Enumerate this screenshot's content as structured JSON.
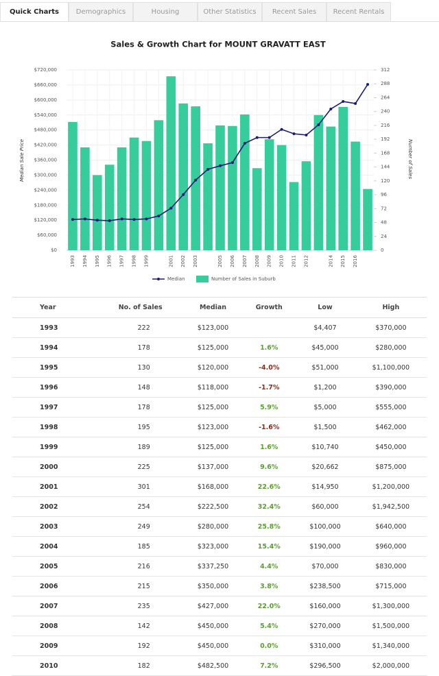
{
  "tabs": [
    "Quick Charts",
    "Demographics",
    "Housing",
    "Other Statistics",
    "Recent Sales",
    "Recent Rentals"
  ],
  "chart_data": {
    "type": "combo",
    "title": "Sales & Growth Chart for MOUNT GRAVATT EAST",
    "y_label": "Median Sale Price",
    "y2_label": "Number of Sales",
    "categories": [
      "1993",
      "1994",
      "1995",
      "1996",
      "1997",
      "1998",
      "1999",
      null,
      "2001",
      "2002",
      "2003",
      null,
      "2005",
      "2006",
      "2007",
      "2008",
      "2009",
      "2010",
      "2011",
      "2012",
      null,
      "2014",
      "2015",
      "2016",
      null
    ],
    "series": [
      {
        "name": "Median",
        "type": "line",
        "axis": "y",
        "color": "#1a1a7a",
        "values": [
          123000,
          125000,
          120000,
          118000,
          125000,
          123000,
          125000,
          137000,
          168000,
          222500,
          280000,
          323000,
          337250,
          350000,
          427000,
          450000,
          450000,
          482500,
          465000,
          460000,
          501000,
          564000,
          594000,
          586000,
          662000
        ]
      },
      {
        "name": "Number of Sales in Suburb",
        "type": "bar",
        "axis": "y2",
        "color": "#36cc9c",
        "values": [
          222,
          178,
          130,
          148,
          178,
          195,
          189,
          225,
          301,
          254,
          249,
          185,
          216,
          215,
          235,
          142,
          192,
          182,
          118,
          154,
          234,
          214,
          248,
          188,
          106
        ]
      }
    ],
    "ylim": [
      0,
      720000
    ],
    "yticks": [
      {
        "value": 0,
        "label": "$0"
      },
      {
        "value": 60000,
        "label": "$60,000"
      },
      {
        "value": 120000,
        "label": "$120,000"
      },
      {
        "value": 180000,
        "label": "$180,000"
      },
      {
        "value": 240000,
        "label": "$240,000"
      },
      {
        "value": 300000,
        "label": "$300,000"
      },
      {
        "value": 360000,
        "label": "$360,000"
      },
      {
        "value": 420000,
        "label": "$420,000"
      },
      {
        "value": 480000,
        "label": "$480,000"
      },
      {
        "value": 540000,
        "label": "$540,000"
      },
      {
        "value": 600000,
        "label": "$600,000"
      },
      {
        "value": 660000,
        "label": "$660,000"
      },
      {
        "value": 720000,
        "label": "$720,000"
      }
    ],
    "y2lim": [
      0,
      312
    ],
    "y2ticks": [
      0,
      24,
      48,
      72,
      96,
      120,
      144,
      168,
      192,
      216,
      240,
      264,
      288,
      312
    ],
    "grid": true
  },
  "table": {
    "header": [
      "Year",
      "No. of Sales",
      "Median",
      "Growth",
      "Low",
      "High"
    ],
    "rows": [
      [
        "1993",
        "222",
        "$123,000",
        "",
        "$4,407",
        "$370,000"
      ],
      [
        "1994",
        "178",
        "$125,000",
        "1.6%",
        "$45,000",
        "$280,000"
      ],
      [
        "1995",
        "130",
        "$120,000",
        "-4.0%",
        "$51,000",
        "$1,100,000"
      ],
      [
        "1996",
        "148",
        "$118,000",
        "-1.7%",
        "$1,200",
        "$390,000"
      ],
      [
        "1997",
        "178",
        "$125,000",
        "5.9%",
        "$5,000",
        "$555,000"
      ],
      [
        "1998",
        "195",
        "$123,000",
        "-1.6%",
        "$1,500",
        "$462,000"
      ],
      [
        "1999",
        "189",
        "$125,000",
        "1.6%",
        "$10,740",
        "$450,000"
      ],
      [
        "2000",
        "225",
        "$137,000",
        "9.6%",
        "$20,662",
        "$875,000"
      ],
      [
        "2001",
        "301",
        "$168,000",
        "22.6%",
        "$14,950",
        "$1,200,000"
      ],
      [
        "2002",
        "254",
        "$222,500",
        "32.4%",
        "$60,000",
        "$1,942,500"
      ],
      [
        "2003",
        "249",
        "$280,000",
        "25.8%",
        "$100,000",
        "$640,000"
      ],
      [
        "2004",
        "185",
        "$323,000",
        "15.4%",
        "$190,000",
        "$960,000"
      ],
      [
        "2005",
        "216",
        "$337,250",
        "4.4%",
        "$70,000",
        "$830,000"
      ],
      [
        "2006",
        "215",
        "$350,000",
        "3.8%",
        "$238,500",
        "$715,000"
      ],
      [
        "2007",
        "235",
        "$427,000",
        "22.0%",
        "$160,000",
        "$1,300,000"
      ],
      [
        "2008",
        "142",
        "$450,000",
        "5.4%",
        "$270,000",
        "$1,500,000"
      ],
      [
        "2009",
        "192",
        "$450,000",
        "0.0%",
        "$310,000",
        "$1,340,000"
      ],
      [
        "2010",
        "182",
        "$482,500",
        "7.2%",
        "$296,500",
        "$2,000,000"
      ]
    ]
  }
}
